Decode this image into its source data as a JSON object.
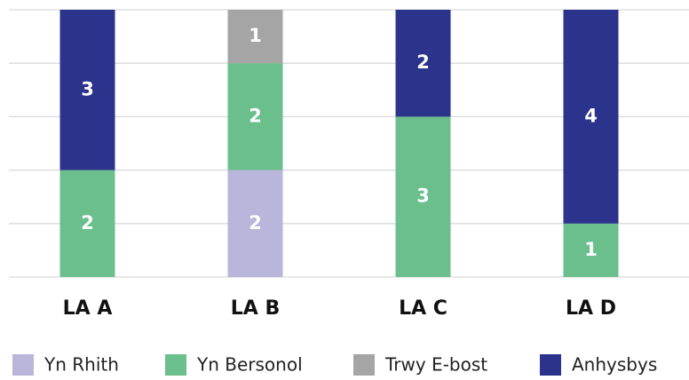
{
  "chart_data": {
    "type": "stacked_bar",
    "categories": [
      "LA A",
      "LA B",
      "LA C",
      "LA D"
    ],
    "series": [
      {
        "name": "Yn Rhith",
        "color": "#b9b5db",
        "values": [
          0,
          2,
          0,
          0
        ]
      },
      {
        "name": "Yn Bersonol",
        "color": "#6bbf8d",
        "values": [
          2,
          2,
          3,
          1
        ]
      },
      {
        "name": "Trwy E-bost",
        "color": "#a5a5a5",
        "values": [
          0,
          1,
          0,
          0
        ]
      },
      {
        "name": "Anhysbys",
        "color": "#2b338c",
        "values": [
          3,
          0,
          2,
          4
        ]
      }
    ],
    "ylim": [
      0,
      5
    ],
    "yticks": [
      0,
      1,
      2,
      3,
      4,
      5
    ],
    "grid": true,
    "legend": "bottom"
  }
}
